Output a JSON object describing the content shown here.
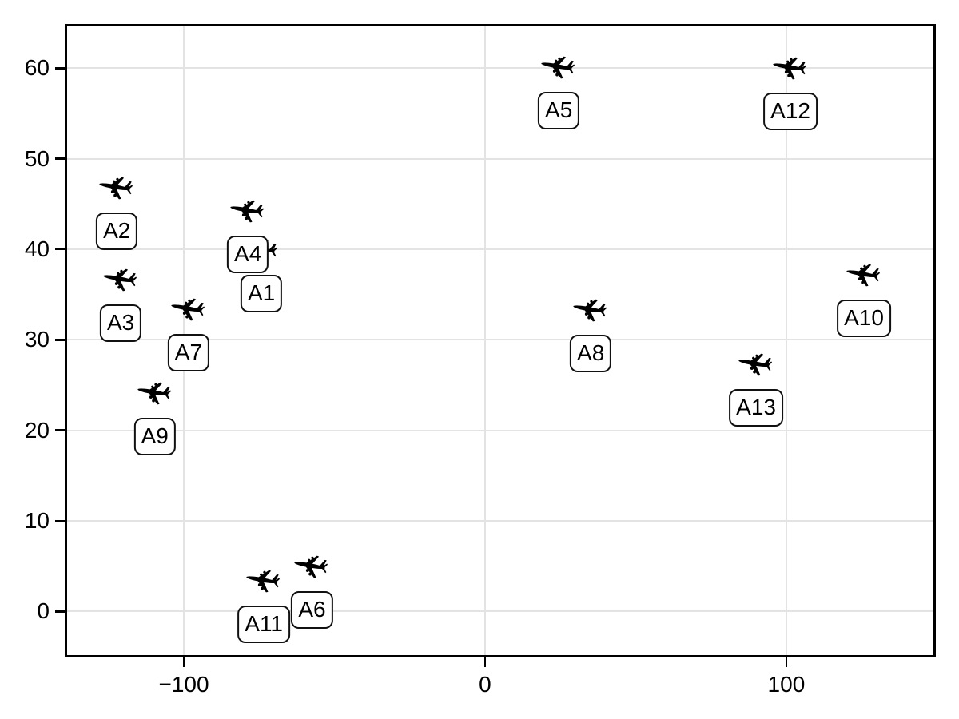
{
  "chart_data": {
    "type": "scatter",
    "title": "",
    "xlabel": "",
    "ylabel": "",
    "marker": "airplane-icon",
    "legend": null,
    "grid": true,
    "xlim": [
      -139.0,
      149.1
    ],
    "ylim": [
      -4.9,
      64.7
    ],
    "xticks": {
      "values": [
        -100,
        0,
        100
      ],
      "labels": [
        "−100",
        "0",
        "100"
      ]
    },
    "yticks": {
      "values": [
        0,
        10,
        20,
        30,
        40,
        50,
        60
      ],
      "labels": [
        "0",
        "10",
        "20",
        "30",
        "40",
        "50",
        "60"
      ]
    },
    "points": [
      {
        "label": "A1",
        "x": -74.5,
        "y": 40.0
      },
      {
        "label": "A2",
        "x": -122.5,
        "y": 46.9
      },
      {
        "label": "A3",
        "x": -121.2,
        "y": 36.7
      },
      {
        "label": "A4",
        "x": -79.0,
        "y": 44.3
      },
      {
        "label": "A5",
        "x": 24.2,
        "y": 60.2
      },
      {
        "label": "A6",
        "x": -57.7,
        "y": 5.1
      },
      {
        "label": "A7",
        "x": -98.7,
        "y": 33.5
      },
      {
        "label": "A8",
        "x": 34.8,
        "y": 33.4
      },
      {
        "label": "A9",
        "x": -109.9,
        "y": 24.2
      },
      {
        "label": "A10",
        "x": 125.5,
        "y": 37.3
      },
      {
        "label": "A11",
        "x": -73.7,
        "y": 3.5
      },
      {
        "label": "A12",
        "x": 101.1,
        "y": 60.1
      },
      {
        "label": "A13",
        "x": 89.7,
        "y": 27.4
      }
    ]
  },
  "colors": {
    "background": "#ffffff",
    "spine": "#000000",
    "grid": "#e3e3e3",
    "marker": "#000000",
    "label_border": "#111111",
    "label_bg": "#ffffff",
    "text": "#000000"
  }
}
